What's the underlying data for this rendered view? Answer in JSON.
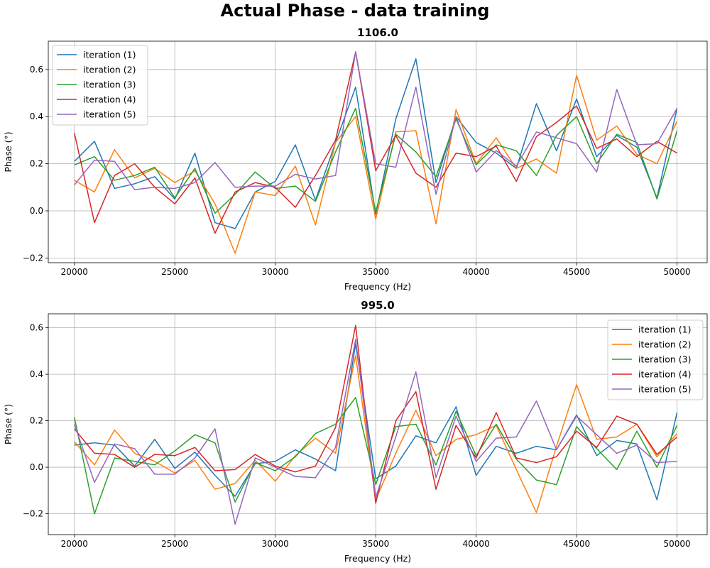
{
  "figure": {
    "title": "Actual Phase - data training"
  },
  "chart_data": [
    {
      "type": "line",
      "title": "1106.0",
      "xlabel": "Frequency (Hz)",
      "ylabel": "Phase (°)",
      "xlim": [
        18700,
        51500
      ],
      "ylim": [
        -0.22,
        0.72
      ],
      "xticks": [
        20000,
        25000,
        30000,
        35000,
        40000,
        45000,
        50000
      ],
      "yticks": [
        -0.2,
        0.0,
        0.2,
        0.4,
        0.6
      ],
      "ytick_labels": [
        "−0.2",
        "0.0",
        "0.2",
        "0.4",
        "0.6"
      ],
      "grid": true,
      "legend_position": "upper-left",
      "x": [
        20000,
        21000,
        22000,
        23000,
        24000,
        25000,
        26000,
        27000,
        28000,
        29000,
        30000,
        31000,
        32000,
        33000,
        34000,
        35000,
        36000,
        37000,
        38000,
        39000,
        40000,
        41000,
        42000,
        43000,
        44000,
        45000,
        46000,
        47000,
        48000,
        49000,
        50000
      ],
      "series": [
        {
          "name": "iteration (1)",
          "color": "#1f77b4",
          "values": [
            0.21,
            0.295,
            0.095,
            0.115,
            0.145,
            0.05,
            0.245,
            -0.05,
            -0.075,
            0.08,
            0.125,
            0.28,
            0.045,
            0.29,
            0.525,
            -0.015,
            0.39,
            0.645,
            0.12,
            0.4,
            0.29,
            0.245,
            0.18,
            0.455,
            0.255,
            0.475,
            0.23,
            0.32,
            0.27,
            0.055,
            0.435
          ]
        },
        {
          "name": "iteration (2)",
          "color": "#ff7f0e",
          "values": [
            0.13,
            0.08,
            0.26,
            0.14,
            0.18,
            0.12,
            0.17,
            0.03,
            -0.18,
            0.08,
            0.065,
            0.19,
            -0.06,
            0.29,
            0.4,
            -0.035,
            0.335,
            0.34,
            -0.055,
            0.43,
            0.2,
            0.31,
            0.18,
            0.22,
            0.16,
            0.575,
            0.3,
            0.36,
            0.24,
            0.2,
            0.38
          ]
        },
        {
          "name": "iteration (3)",
          "color": "#2ca02c",
          "values": [
            0.195,
            0.23,
            0.13,
            0.15,
            0.185,
            0.055,
            0.18,
            -0.01,
            0.07,
            0.165,
            0.095,
            0.105,
            0.04,
            0.25,
            0.435,
            -0.005,
            0.325,
            0.25,
            0.145,
            0.39,
            0.195,
            0.28,
            0.255,
            0.15,
            0.32,
            0.4,
            0.2,
            0.325,
            0.29,
            0.05,
            0.34
          ]
        },
        {
          "name": "iteration (4)",
          "color": "#d62728",
          "values": [
            0.33,
            -0.05,
            0.15,
            0.2,
            0.1,
            0.03,
            0.14,
            -0.095,
            0.08,
            0.12,
            0.1,
            0.015,
            0.15,
            0.3,
            0.675,
            0.17,
            0.32,
            0.16,
            0.1,
            0.245,
            0.23,
            0.275,
            0.125,
            0.315,
            0.375,
            0.445,
            0.265,
            0.305,
            0.23,
            0.295,
            0.245
          ]
        },
        {
          "name": "iteration (5)",
          "color": "#9467bd",
          "values": [
            0.11,
            0.215,
            0.21,
            0.09,
            0.1,
            0.095,
            0.12,
            0.205,
            0.1,
            0.105,
            0.105,
            0.155,
            0.135,
            0.15,
            0.675,
            0.2,
            0.185,
            0.525,
            0.07,
            0.4,
            0.165,
            0.255,
            0.19,
            0.335,
            0.31,
            0.285,
            0.165,
            0.515,
            0.28,
            0.285,
            0.435
          ]
        }
      ]
    },
    {
      "type": "line",
      "title": "995.0",
      "xlabel": "Frequency (Hz)",
      "ylabel": "Phase (°)",
      "xlim": [
        18700,
        51500
      ],
      "ylim": [
        -0.29,
        0.66
      ],
      "xticks": [
        20000,
        25000,
        30000,
        35000,
        40000,
        45000,
        50000
      ],
      "yticks": [
        -0.2,
        0.0,
        0.2,
        0.4,
        0.6
      ],
      "ytick_labels": [
        "−0.2",
        "0.0",
        "0.2",
        "0.4",
        "0.6"
      ],
      "grid": true,
      "legend_position": "upper-right",
      "x": [
        20000,
        21000,
        22000,
        23000,
        24000,
        25000,
        26000,
        27000,
        28000,
        29000,
        30000,
        31000,
        32000,
        33000,
        34000,
        35000,
        36000,
        37000,
        38000,
        39000,
        40000,
        41000,
        42000,
        43000,
        44000,
        45000,
        46000,
        47000,
        48000,
        49000,
        50000
      ],
      "series": [
        {
          "name": "iteration (1)",
          "color": "#1f77b4",
          "values": [
            0.095,
            0.105,
            0.095,
            0.005,
            0.12,
            -0.005,
            0.065,
            -0.035,
            -0.125,
            0.015,
            0.025,
            0.075,
            0.035,
            -0.015,
            0.53,
            -0.05,
            0.005,
            0.135,
            0.105,
            0.26,
            -0.035,
            0.09,
            0.06,
            0.09,
            0.075,
            0.225,
            0.05,
            0.115,
            0.1,
            -0.14,
            0.235
          ]
        },
        {
          "name": "iteration (2)",
          "color": "#ff7f0e",
          "values": [
            0.11,
            0.01,
            0.16,
            0.06,
            0.025,
            -0.025,
            0.03,
            -0.095,
            -0.07,
            0.03,
            -0.06,
            0.05,
            0.125,
            0.06,
            0.48,
            -0.14,
            0.06,
            0.245,
            0.05,
            0.12,
            0.14,
            0.18,
            -0.01,
            -0.195,
            0.09,
            0.355,
            0.12,
            0.13,
            0.185,
            0.045,
            0.145
          ]
        },
        {
          "name": "iteration (3)",
          "color": "#2ca02c",
          "values": [
            0.215,
            -0.2,
            0.04,
            0.025,
            0.01,
            0.07,
            0.14,
            0.105,
            -0.15,
            0.02,
            -0.015,
            0.045,
            0.145,
            0.185,
            0.3,
            -0.075,
            0.175,
            0.185,
            0.01,
            0.24,
            0.05,
            0.185,
            0.035,
            -0.055,
            -0.075,
            0.175,
            0.08,
            -0.01,
            0.155,
            0.0,
            0.18
          ]
        },
        {
          "name": "iteration (4)",
          "color": "#d62728",
          "values": [
            0.165,
            0.06,
            0.055,
            0.0,
            0.055,
            0.05,
            0.085,
            -0.015,
            -0.01,
            0.055,
            0.005,
            -0.02,
            0.005,
            0.17,
            0.61,
            -0.155,
            0.2,
            0.325,
            -0.095,
            0.18,
            0.04,
            0.235,
            0.04,
            0.02,
            0.045,
            0.155,
            0.085,
            0.22,
            0.185,
            0.055,
            0.13
          ]
        },
        {
          "name": "iteration (5)",
          "color": "#9467bd",
          "values": [
            0.185,
            -0.065,
            0.1,
            0.08,
            -0.03,
            -0.03,
            0.04,
            0.165,
            -0.245,
            0.04,
            0.0,
            -0.04,
            -0.045,
            0.085,
            0.55,
            -0.13,
            0.13,
            0.41,
            -0.045,
            0.22,
            0.025,
            0.125,
            0.13,
            0.285,
            0.075,
            0.22,
            0.14,
            0.06,
            0.095,
            0.02,
            0.025
          ]
        }
      ]
    }
  ]
}
